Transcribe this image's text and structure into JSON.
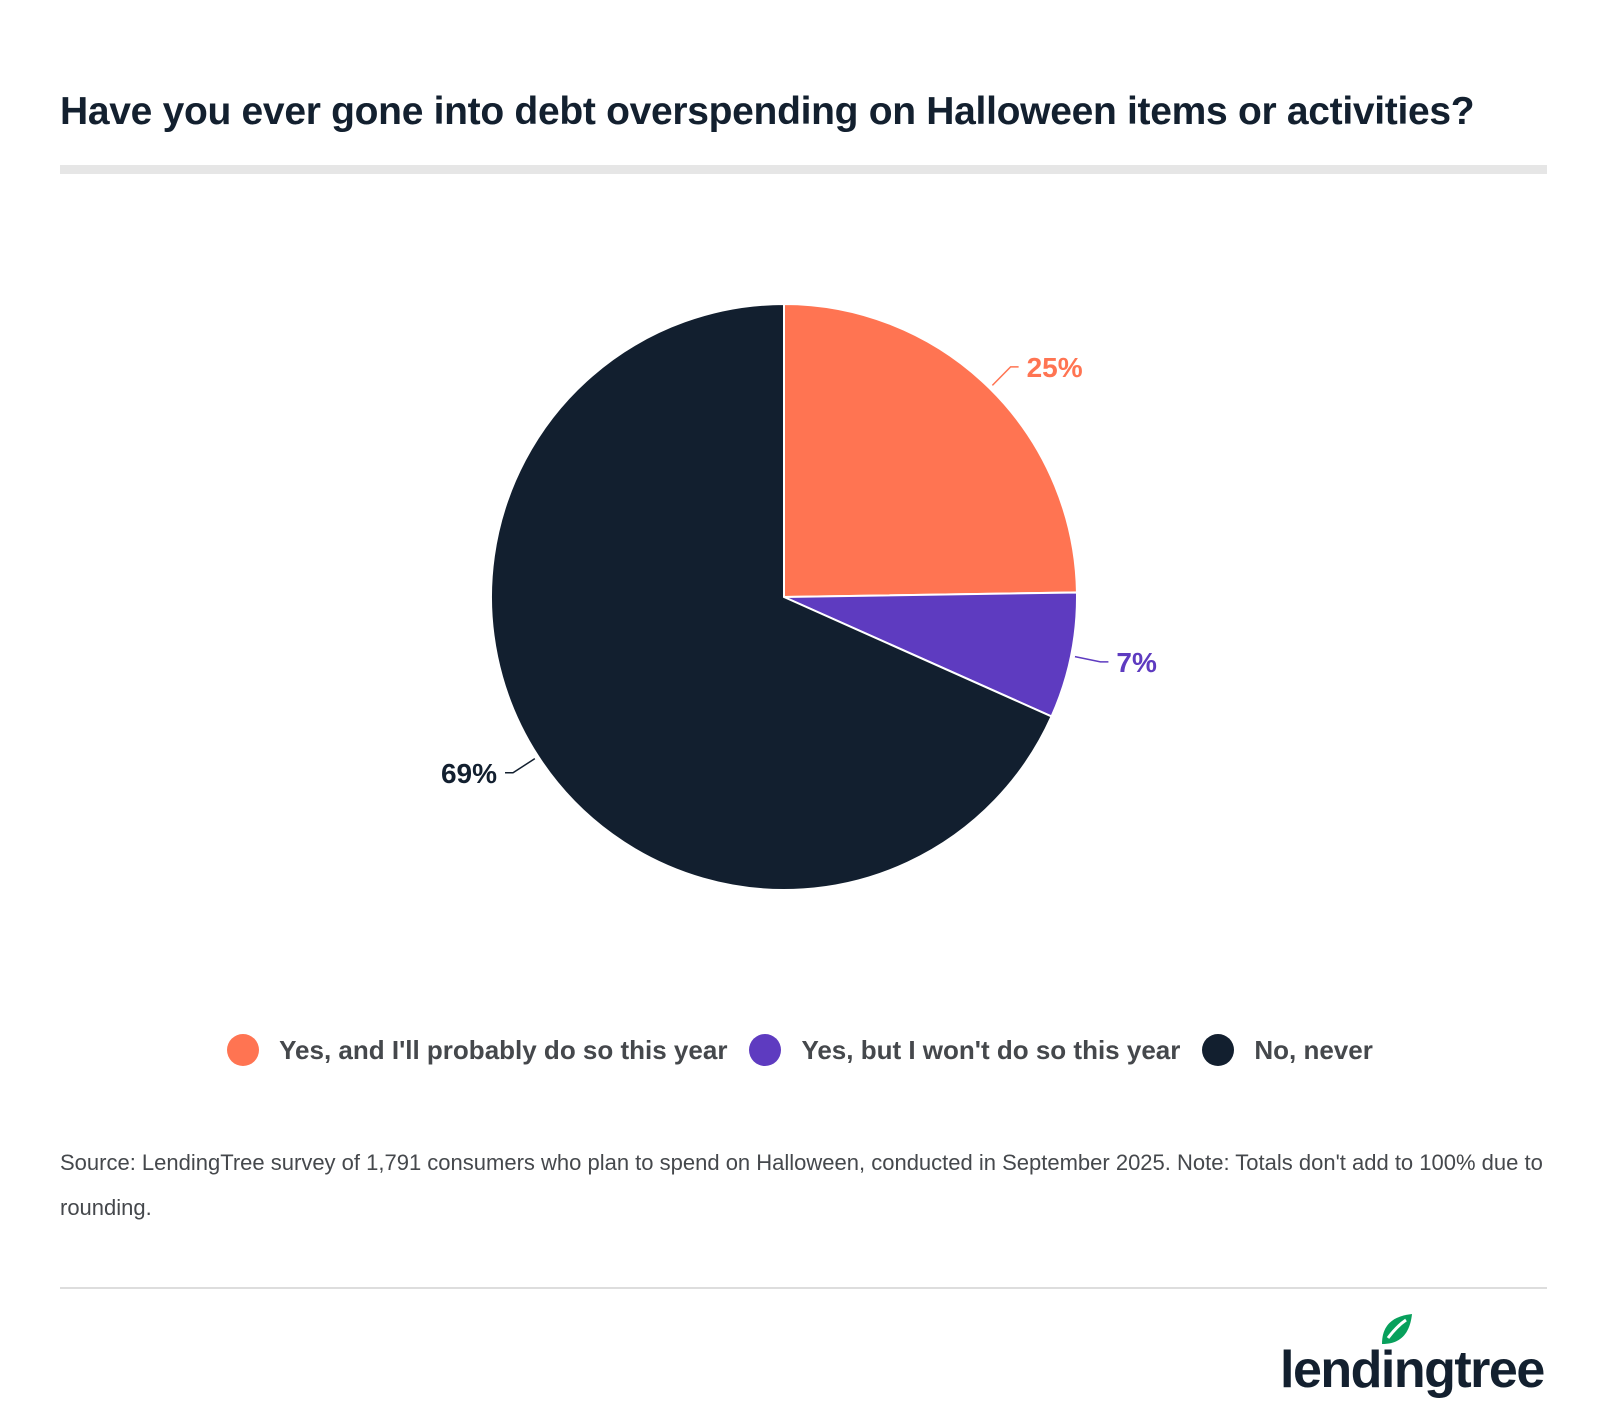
{
  "title": "Have you ever gone into debt overspending on Halloween items or activities?",
  "chart_data": {
    "type": "pie",
    "title": "Have you ever gone into debt overspending on Halloween items or activities?",
    "slices": [
      {
        "label": "Yes, and I'll probably do so this year",
        "value": 25,
        "value_label": "25%",
        "color": "#ff7452"
      },
      {
        "label": "Yes, but I won't do so this year",
        "value": 7,
        "value_label": "7%",
        "color": "#5e3bc0"
      },
      {
        "label": "No, never",
        "value": 69,
        "value_label": "69%",
        "color": "#121f2f"
      }
    ],
    "start_angle": "12 o'clock",
    "direction": "clockwise",
    "legend_position": "bottom"
  },
  "legend": [
    {
      "label": "Yes, and I'll probably do so this year",
      "color": "#ff7452"
    },
    {
      "label": "Yes, but I won't do so this year",
      "color": "#5e3bc0"
    },
    {
      "label": "No, never",
      "color": "#121f2f"
    }
  ],
  "source": "Source: LendingTree survey of 1,791 consumers who plan to spend on Halloween, conducted in September 2025. Note: Totals don't add to 100% due to rounding.",
  "logo": {
    "text": "lendingtree",
    "icon": "leaf-icon",
    "accent_color": "#08a05c"
  }
}
